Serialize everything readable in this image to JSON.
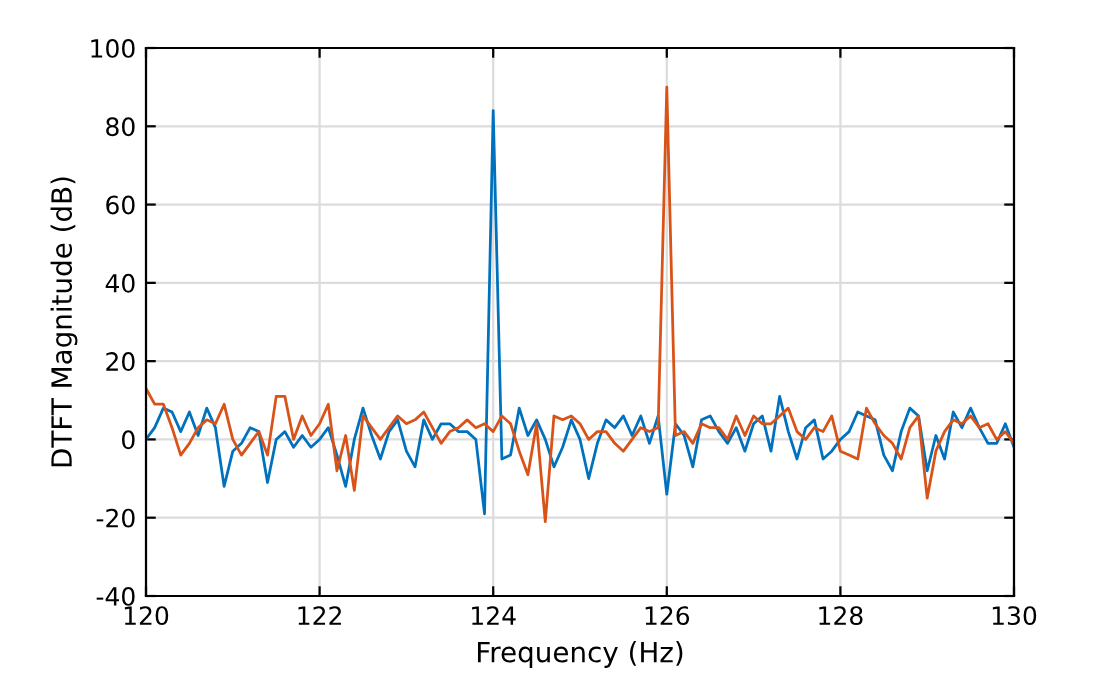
{
  "chart_data": {
    "type": "line",
    "xlabel": "Frequency (Hz)",
    "ylabel": "DTFT Magnitude (dB)",
    "x": [
      120,
      120.1,
      120.2,
      120.3,
      120.4,
      120.5,
      120.6,
      120.7,
      120.8,
      120.9,
      121,
      121.1,
      121.2,
      121.3,
      121.4,
      121.5,
      121.6,
      121.7,
      121.8,
      121.9,
      122,
      122.1,
      122.2,
      122.3,
      122.4,
      122.5,
      122.6,
      122.7,
      122.8,
      122.9,
      123,
      123.1,
      123.2,
      123.3,
      123.4,
      123.5,
      123.6,
      123.7,
      123.8,
      123.9,
      124,
      124.1,
      124.2,
      124.3,
      124.4,
      124.5,
      124.6,
      124.7,
      124.8,
      124.9,
      125,
      125.1,
      125.2,
      125.3,
      125.4,
      125.5,
      125.6,
      125.7,
      125.8,
      125.9,
      126,
      126.1,
      126.2,
      126.3,
      126.4,
      126.5,
      126.6,
      126.7,
      126.8,
      126.9,
      127,
      127.1,
      127.2,
      127.3,
      127.4,
      127.5,
      127.6,
      127.7,
      127.8,
      127.9,
      128,
      128.1,
      128.2,
      128.3,
      128.4,
      128.5,
      128.6,
      128.7,
      128.8,
      128.9,
      129,
      129.1,
      129.2,
      129.3,
      129.4,
      129.5,
      129.6,
      129.7,
      129.8,
      129.9,
      130
    ],
    "series": [
      {
        "color": "#0072bd",
        "values": [
          0,
          3,
          8,
          7,
          2,
          7,
          1,
          8,
          3,
          -12,
          -3,
          -1,
          3,
          2,
          -11,
          0,
          2,
          -2,
          1,
          -2,
          0,
          3,
          -4,
          -12,
          0,
          8,
          1,
          -5,
          2,
          5,
          -3,
          -7,
          5,
          0,
          4,
          4,
          2,
          2,
          0,
          -19,
          84,
          -5,
          -4,
          8,
          1,
          5,
          0,
          -7,
          -2,
          5,
          0,
          -10,
          -1,
          5,
          3,
          6,
          1,
          6,
          -1,
          6,
          -14,
          4,
          1,
          -7,
          5,
          6,
          2,
          -1,
          3,
          -3,
          4,
          6,
          -3,
          11,
          2,
          -5,
          3,
          5,
          -5,
          -3,
          0,
          2,
          7,
          6,
          5,
          -4,
          -8,
          2,
          8,
          6,
          -8,
          1,
          -5,
          7,
          3,
          8,
          3,
          -1,
          -1,
          4,
          -2
        ]
      },
      {
        "color": "#d95319",
        "values": [
          13,
          9,
          9,
          3,
          -4,
          -1,
          3,
          5,
          4,
          9,
          0,
          -4,
          -1,
          2,
          -4,
          11,
          11,
          0,
          6,
          1,
          4,
          9,
          -8,
          1,
          -13,
          6,
          3,
          0,
          3,
          6,
          4,
          5,
          7,
          3,
          -1,
          2,
          3,
          5,
          3,
          4,
          2,
          6,
          4,
          -3,
          -9,
          4,
          -21,
          6,
          5,
          6,
          4,
          0,
          2,
          2,
          -1,
          -3,
          0,
          3,
          2,
          3,
          90,
          1,
          2,
          -1,
          4,
          3,
          3,
          0,
          6,
          1,
          6,
          4,
          4,
          6,
          8,
          2,
          0,
          3,
          2,
          6,
          -3,
          -4,
          -5,
          8,
          4,
          1,
          -1,
          -5,
          3,
          6,
          -15,
          -3,
          2,
          5,
          4,
          6,
          3,
          4,
          0,
          2,
          -1
        ]
      }
    ],
    "xlim": [
      120,
      130
    ],
    "ylim": [
      -40,
      100
    ],
    "xticks": [
      120,
      122,
      124,
      126,
      128,
      130
    ],
    "yticks": [
      -40,
      -20,
      0,
      20,
      40,
      60,
      80,
      100
    ],
    "grid": true
  }
}
